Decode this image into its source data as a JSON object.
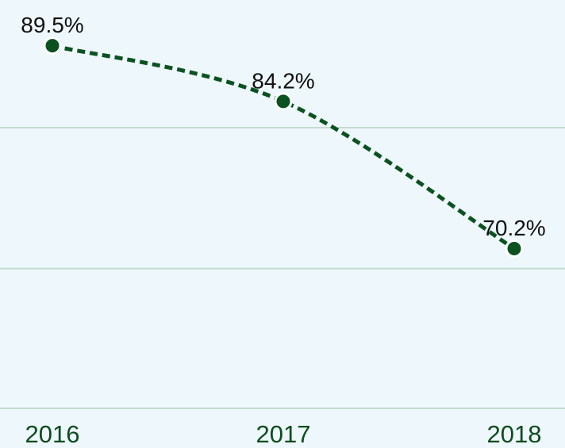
{
  "chart_data": {
    "type": "line",
    "categories": [
      "2016",
      "2017",
      "2018"
    ],
    "values": [
      89.5,
      84.2,
      70.2
    ],
    "value_labels": [
      "89.5%",
      "84.2%",
      "70.2%"
    ],
    "color": "#0b5220",
    "dashed": true,
    "ylim": [
      55,
      94
    ],
    "yticks": [
      55,
      68.3,
      81.7
    ],
    "grid": true
  }
}
